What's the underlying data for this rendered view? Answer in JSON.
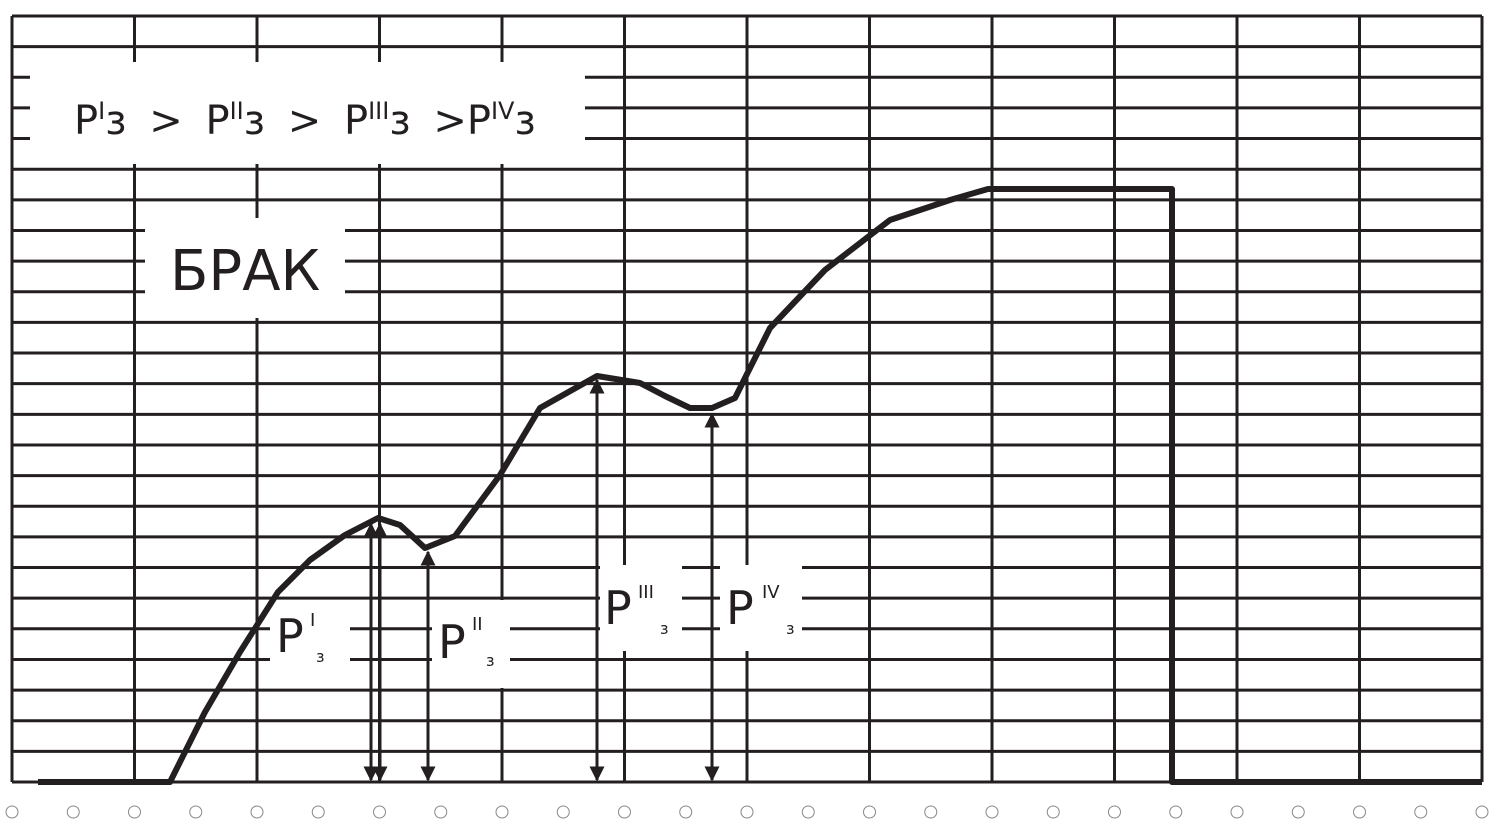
{
  "formula": {
    "terms": [
      {
        "symbol": "P",
        "index": "I",
        "suffix": "з"
      },
      {
        "symbol": "P",
        "index": "II",
        "suffix": "з"
      },
      {
        "symbol": "P",
        "index": "III",
        "suffix": "з"
      },
      {
        "symbol": "P",
        "index": "IV",
        "suffix": "з"
      }
    ],
    "operator": ">"
  },
  "reject_label": "БРАК",
  "labels": [
    {
      "symbol": "P",
      "index": "I",
      "subscript": "з"
    },
    {
      "symbol": "P",
      "index": "II",
      "subscript": "з"
    },
    {
      "symbol": "P",
      "index": "III",
      "subscript": "з"
    },
    {
      "symbol": "P",
      "index": "IV",
      "subscript": "з"
    }
  ]
}
